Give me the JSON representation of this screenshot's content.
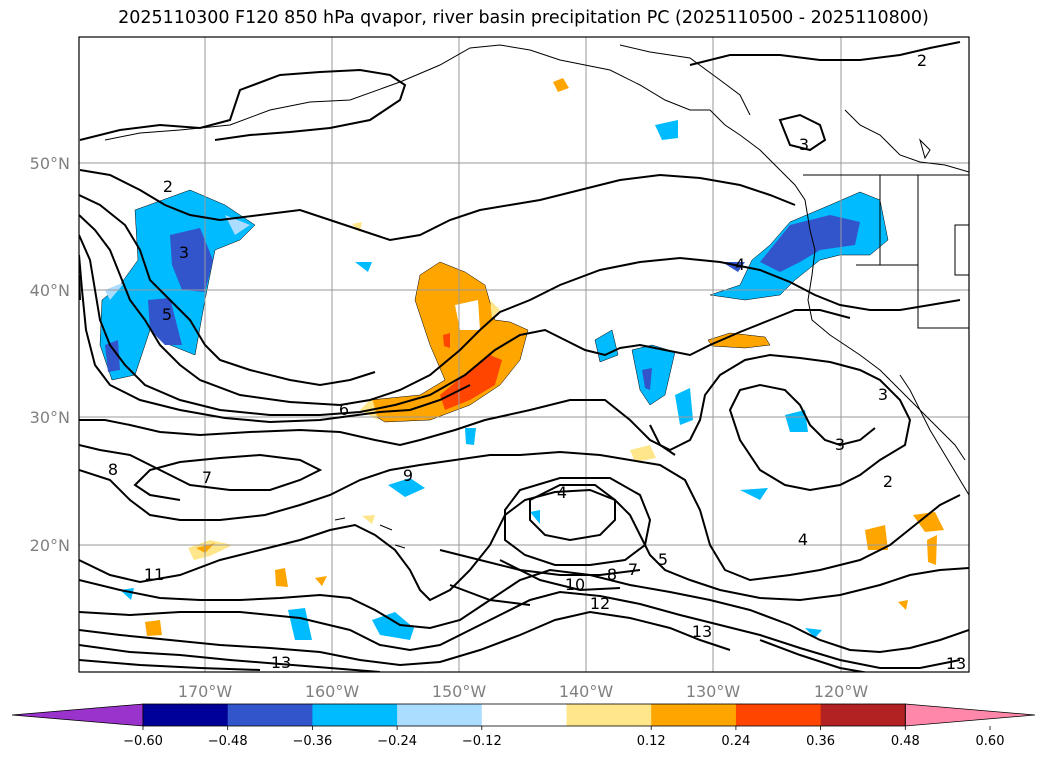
{
  "title": "2025110300 F120 850 hPa qvapor, river basin precipitation PC (2025110500 - 2025110800)",
  "lat_labels": [
    "50°N",
    "40°N",
    "30°N",
    "20°N"
  ],
  "lon_labels": [
    "170°W",
    "160°W",
    "150°W",
    "140°W",
    "130°W",
    "120°W"
  ],
  "contour_labels": [
    "2",
    "3",
    "4",
    "5",
    "6",
    "7",
    "8",
    "9",
    "10",
    "11",
    "12",
    "13"
  ],
  "colorbar": {
    "colors": [
      "#9933cc",
      "#000099",
      "#3355cc",
      "#00bbff",
      "#aaddff",
      "#ffffff",
      "#ffe68a",
      "#ffa500",
      "#ff4500",
      "#b22222",
      "#ff88aa"
    ],
    "tick_labels": [
      "−0.60",
      "−0.48",
      "−0.36",
      "−0.24",
      "−0.12",
      "0.12",
      "0.24",
      "0.36",
      "0.48",
      "0.60"
    ]
  }
}
